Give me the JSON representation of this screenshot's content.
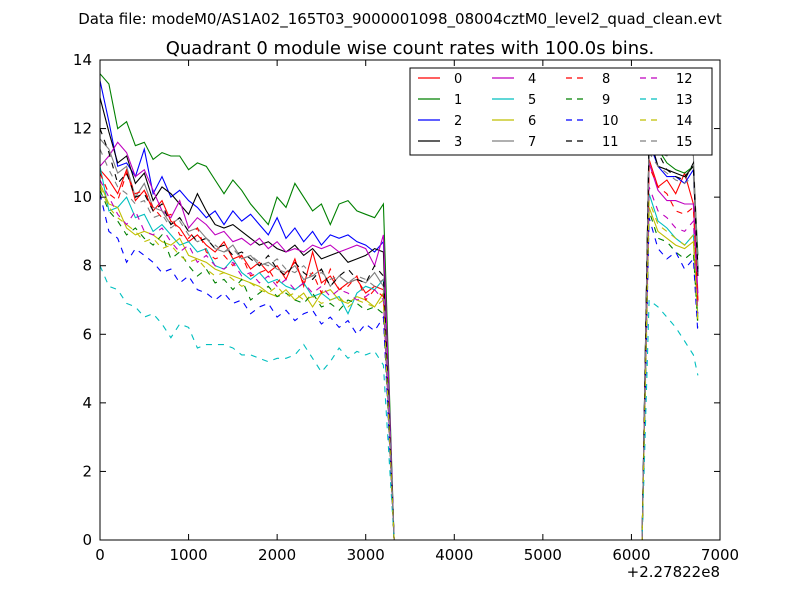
{
  "chart_data": {
    "type": "line",
    "suptitle": "Data file: modeM0/AS1A02_165T03_9000001098_08004cztM0_level2_quad_clean.evt",
    "title": "Quadrant 0 module wise count rates with 100.0s bins.",
    "xlabel": "",
    "ylabel": "",
    "x_offset_label": "+2.27822e8",
    "xlim": [
      0,
      7000
    ],
    "ylim": [
      0,
      14
    ],
    "x_ticks": [
      0,
      1000,
      2000,
      3000,
      4000,
      5000,
      6000,
      7000
    ],
    "y_ticks": [
      0,
      2,
      4,
      6,
      8,
      10,
      12,
      14
    ],
    "grid": false,
    "legend_position": "top-right",
    "segments": [
      {
        "x_start": 0,
        "x_end": 3200,
        "x_step": 100,
        "drop_x": 3320,
        "floor_end": 6120
      },
      {
        "x_start": 6200,
        "x_end": 6700,
        "x_step": 100,
        "tail_x": 6750
      }
    ],
    "series": [
      {
        "name": "0",
        "color": "#ff0000",
        "dash": "solid",
        "seg1": [
          10.8,
          10.5,
          10.1,
          10.8,
          9.9,
          10.2,
          9.6,
          9.9,
          9.3,
          9.1,
          8.7,
          8.9,
          8.6,
          8.4,
          8.7,
          8.2,
          8.3,
          7.9,
          8.1,
          7.8,
          8.0,
          7.6,
          8.2,
          7.4,
          8.4,
          7.5,
          7.7,
          7.3,
          7.5,
          7.6,
          7.2,
          7.4,
          7.3
        ],
        "seg2": [
          11.1,
          10.3,
          10.5,
          10.1,
          10.7,
          9.8,
          7.0
        ]
      },
      {
        "name": "1",
        "color": "#008000",
        "dash": "solid",
        "seg1": [
          13.6,
          13.3,
          12.0,
          12.2,
          11.5,
          11.6,
          11.1,
          11.3,
          11.2,
          11.2,
          10.8,
          11.0,
          10.9,
          10.5,
          10.1,
          10.5,
          10.2,
          9.8,
          9.5,
          9.2,
          10.0,
          9.7,
          10.4,
          10.0,
          9.6,
          9.8,
          9.2,
          9.8,
          9.9,
          9.6,
          9.5,
          9.4,
          9.8
        ],
        "seg2": [
          11.7,
          11.4,
          11.0,
          10.8,
          10.7,
          10.9,
          8.3
        ]
      },
      {
        "name": "2",
        "color": "#0000ff",
        "dash": "solid",
        "seg1": [
          13.4,
          12.2,
          10.9,
          11.0,
          10.6,
          11.4,
          10.1,
          10.6,
          10.0,
          10.2,
          9.9,
          9.7,
          9.4,
          9.6,
          9.2,
          9.6,
          9.3,
          9.5,
          9.2,
          8.9,
          9.4,
          8.8,
          9.1,
          8.7,
          9.0,
          8.6,
          8.9,
          8.8,
          8.9,
          8.7,
          8.6,
          8.4,
          8.7
        ],
        "seg2": [
          11.6,
          10.9,
          10.6,
          10.6,
          10.4,
          10.8,
          7.8
        ]
      },
      {
        "name": "3",
        "color": "#000000",
        "dash": "solid",
        "seg1": [
          12.9,
          11.9,
          11.0,
          11.2,
          10.4,
          10.7,
          9.9,
          10.3,
          10.1,
          9.8,
          9.5,
          10.1,
          9.6,
          9.2,
          9.1,
          9.2,
          9.0,
          8.8,
          8.6,
          8.7,
          8.5,
          8.4,
          8.6,
          8.3,
          8.5,
          8.2,
          8.3,
          8.4,
          8.1,
          8.2,
          8.3,
          8.5,
          8.4
        ],
        "seg2": [
          11.8,
          10.9,
          10.8,
          10.7,
          10.6,
          10.9,
          7.7
        ]
      },
      {
        "name": "4",
        "color": "#bf00bf",
        "dash": "solid",
        "seg1": [
          10.9,
          11.2,
          11.6,
          11.3,
          10.6,
          10.8,
          10.2,
          9.6,
          9.4,
          9.9,
          9.1,
          9.4,
          9.2,
          8.9,
          9.0,
          8.7,
          8.8,
          8.6,
          8.8,
          8.5,
          8.7,
          8.4,
          8.5,
          8.4,
          8.6,
          8.5,
          8.6,
          8.4,
          8.5,
          8.6,
          8.5,
          8.0,
          8.9
        ],
        "seg2": [
          11.0,
          10.2,
          9.9,
          9.9,
          9.8,
          9.8,
          7.2
        ]
      },
      {
        "name": "5",
        "color": "#00bfbf",
        "dash": "solid",
        "seg1": [
          10.9,
          9.6,
          9.7,
          10.0,
          9.4,
          9.5,
          9.0,
          9.2,
          8.9,
          8.6,
          8.7,
          8.4,
          8.5,
          8.0,
          7.9,
          8.2,
          7.8,
          7.6,
          7.8,
          7.5,
          7.6,
          7.4,
          7.3,
          7.5,
          7.1,
          7.2,
          7.0,
          7.1,
          6.6,
          7.2,
          7.4,
          7.3,
          7.6
        ],
        "seg2": [
          10.1,
          9.3,
          9.1,
          8.8,
          8.6,
          8.9,
          6.5
        ]
      },
      {
        "name": "6",
        "color": "#bfbf00",
        "dash": "solid",
        "seg1": [
          10.4,
          9.8,
          9.7,
          9.1,
          8.9,
          9.0,
          8.9,
          8.7,
          8.6,
          8.8,
          8.3,
          8.2,
          8.1,
          7.9,
          7.8,
          7.7,
          7.6,
          7.5,
          7.4,
          7.2,
          7.1,
          7.3,
          7.0,
          7.2,
          6.8,
          7.2,
          7.3,
          7.0,
          6.9,
          7.1,
          7.0,
          6.8,
          7.2
        ],
        "seg2": [
          9.7,
          9.0,
          8.8,
          8.6,
          8.5,
          8.7,
          6.4
        ]
      },
      {
        "name": "7",
        "color": "#808080",
        "dash": "solid",
        "seg1": [
          11.7,
          11.4,
          10.7,
          10.9,
          10.0,
          10.4,
          9.7,
          9.6,
          9.2,
          9.4,
          9.0,
          9.1,
          8.8,
          8.5,
          8.4,
          8.6,
          8.2,
          8.3,
          8.0,
          8.1,
          7.9,
          7.8,
          8.0,
          7.6,
          7.7,
          7.9,
          7.4,
          7.7,
          7.5,
          7.6,
          7.5,
          7.8,
          7.4
        ],
        "seg2": [
          11.6,
          11.3,
          11.2,
          11.6,
          11.6,
          11.2,
          8.0
        ]
      },
      {
        "name": "8",
        "color": "#ff0000",
        "dash": "dashed",
        "seg1": [
          10.7,
          10.1,
          9.9,
          10.7,
          10.1,
          10.2,
          9.7,
          9.4,
          9.5,
          8.9,
          8.8,
          9.1,
          8.4,
          8.2,
          8.3,
          8.0,
          8.3,
          7.7,
          7.8,
          7.9,
          7.5,
          7.8,
          8.1,
          7.5,
          7.8,
          7.2,
          7.9,
          7.3,
          7.4,
          7.7,
          7.0,
          7.3,
          7.1
        ],
        "seg2": [
          10.9,
          10.3,
          10.1,
          9.6,
          9.5,
          9.7,
          6.9
        ]
      },
      {
        "name": "9",
        "color": "#008000",
        "dash": "dashed",
        "seg1": [
          10.2,
          9.6,
          9.3,
          8.9,
          9.1,
          8.8,
          8.6,
          8.9,
          8.2,
          8.4,
          8.0,
          7.7,
          7.9,
          7.5,
          7.6,
          7.3,
          7.6,
          7.0,
          7.2,
          7.4,
          7.1,
          7.2,
          7.0,
          6.9,
          7.2,
          6.8,
          6.9,
          6.7,
          7.0,
          6.9,
          6.7,
          6.8,
          6.6
        ],
        "seg2": [
          9.6,
          8.8,
          8.7,
          8.4,
          8.2,
          8.4,
          6.2
        ]
      },
      {
        "name": "10",
        "color": "#0000ff",
        "dash": "dashed",
        "seg1": [
          10.1,
          9.0,
          8.8,
          8.1,
          8.5,
          8.3,
          8.1,
          7.8,
          7.9,
          7.5,
          7.7,
          7.3,
          7.2,
          7.0,
          7.2,
          6.9,
          7.0,
          6.6,
          6.8,
          6.9,
          6.5,
          6.7,
          6.4,
          6.6,
          6.7,
          6.3,
          6.5,
          6.2,
          6.4,
          6.0,
          6.3,
          6.1,
          6.5
        ],
        "seg2": [
          9.4,
          8.5,
          8.2,
          8.4,
          7.9,
          8.2,
          6.0
        ]
      },
      {
        "name": "11",
        "color": "#000000",
        "dash": "dashed",
        "seg1": [
          12.0,
          11.3,
          10.4,
          10.7,
          10.0,
          10.1,
          9.6,
          9.8,
          9.2,
          9.4,
          9.0,
          8.7,
          8.8,
          8.5,
          8.6,
          8.3,
          8.4,
          8.2,
          8.0,
          8.3,
          7.9,
          7.7,
          8.1,
          7.8,
          7.6,
          7.9,
          7.4,
          7.7,
          7.9,
          7.6,
          7.5,
          8.0,
          7.7
        ],
        "seg2": [
          11.6,
          11.3,
          10.8,
          10.6,
          10.5,
          11.0,
          7.9
        ]
      },
      {
        "name": "12",
        "color": "#bf00bf",
        "dash": "dashed",
        "seg1": [
          10.5,
          10.0,
          9.5,
          9.2,
          9.6,
          9.0,
          8.9,
          9.1,
          8.7,
          8.4,
          8.6,
          8.1,
          8.3,
          8.0,
          7.9,
          8.1,
          7.7,
          7.8,
          7.5,
          7.7,
          7.4,
          7.6,
          7.3,
          7.5,
          7.2,
          7.4,
          7.1,
          7.3,
          7.2,
          7.0,
          7.1,
          7.3,
          7.0
        ],
        "seg2": [
          10.3,
          9.6,
          9.4,
          9.1,
          9.0,
          9.3,
          6.6
        ]
      },
      {
        "name": "13",
        "color": "#00bfbf",
        "dash": "dashed",
        "seg1": [
          8.0,
          7.4,
          7.3,
          6.9,
          6.8,
          6.5,
          6.6,
          6.3,
          5.9,
          6.3,
          6.2,
          5.6,
          5.7,
          5.7,
          5.7,
          5.6,
          5.4,
          5.4,
          5.3,
          5.2,
          5.3,
          5.3,
          5.4,
          5.7,
          5.3,
          4.9,
          5.2,
          5.6,
          5.3,
          5.5,
          5.4,
          5.5,
          5.1
        ],
        "seg2": [
          7.0,
          6.8,
          6.5,
          6.2,
          5.8,
          5.4,
          4.8
        ]
      },
      {
        "name": "14",
        "color": "#bfbf00",
        "dash": "dashed",
        "seg1": [
          10.3,
          9.7,
          9.4,
          9.2,
          9.0,
          8.7,
          8.8,
          8.5,
          8.6,
          8.3,
          8.1,
          8.2,
          7.9,
          7.7,
          7.8,
          7.6,
          7.4,
          7.5,
          7.3,
          7.2,
          7.4,
          7.1,
          7.2,
          7.0,
          7.1,
          6.9,
          7.0,
          7.1,
          6.8,
          7.0,
          6.9,
          6.8,
          7.0
        ],
        "seg2": [
          9.9,
          9.2,
          9.0,
          8.8,
          8.6,
          8.9,
          6.3
        ]
      },
      {
        "name": "15",
        "color": "#808080",
        "dash": "dashed",
        "seg1": [
          11.4,
          10.8,
          10.3,
          10.1,
          9.8,
          9.9,
          9.4,
          9.5,
          9.1,
          9.3,
          8.9,
          8.7,
          8.8,
          8.6,
          8.4,
          8.5,
          8.2,
          8.3,
          8.1,
          8.0,
          8.2,
          7.9,
          7.8,
          8.0,
          7.7,
          7.8,
          7.6,
          7.7,
          7.5,
          7.7,
          7.6,
          7.4,
          7.6
        ],
        "seg2": [
          11.3,
          10.9,
          10.7,
          10.5,
          10.4,
          10.6,
          7.8
        ]
      }
    ]
  }
}
